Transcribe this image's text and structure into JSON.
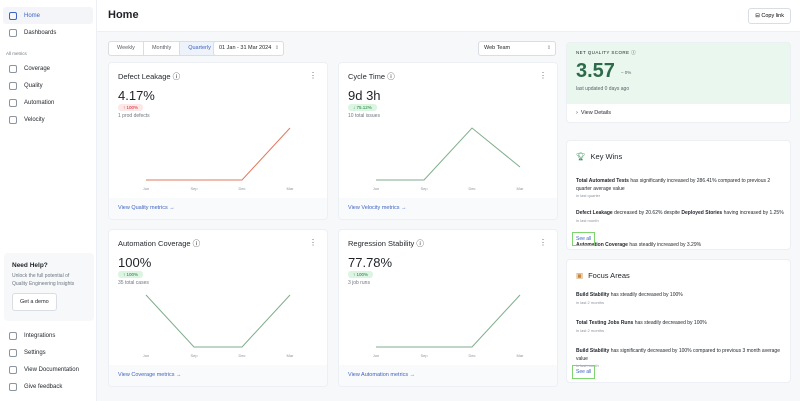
{
  "sidebar": {
    "items": [
      {
        "label": "Home",
        "icon": "home-icon"
      },
      {
        "label": "Dashboards",
        "icon": "grid-icon"
      }
    ],
    "section_label": "All metrics",
    "metrics": [
      {
        "label": "Coverage",
        "icon": "coverage-icon"
      },
      {
        "label": "Quality",
        "icon": "quality-icon"
      },
      {
        "label": "Automation",
        "icon": "automation-icon"
      },
      {
        "label": "Velocity",
        "icon": "velocity-icon"
      }
    ],
    "help": {
      "title": "Need Help?",
      "text": "Unlock the full potential of Quality Engineering Insights",
      "button": "Get a demo"
    },
    "bottom": [
      {
        "label": "Integrations"
      },
      {
        "label": "Settings"
      },
      {
        "label": "View Documentation"
      },
      {
        "label": "Give feedback"
      }
    ]
  },
  "header": {
    "title": "Home",
    "copy_link": "Copy link"
  },
  "filters": {
    "periods": [
      "Weekly",
      "Monthly",
      "Quarterly"
    ],
    "selected": "Quarterly",
    "date_range": "01 Jan - 31 Mar 2024",
    "team": "Web Team"
  },
  "colors": {
    "accent": "#3e63c2",
    "up_bad": "#e07a5f",
    "line_good": "#7fae8c",
    "score": "#2d6a4a"
  },
  "cards": [
    {
      "title": "Defect Leakage",
      "value": "4.17%",
      "badge": "↑ 100%",
      "badge_type": "red",
      "sub": "1 prod defects",
      "link": "View Quality metrics →",
      "color": "#e07a5f"
    },
    {
      "title": "Cycle Time",
      "value": "9d 3h",
      "badge": "↓ 75.12%",
      "badge_type": "green",
      "sub": "10 total issues",
      "link": "View Velocity metrics →",
      "color": "#7fae8c"
    },
    {
      "title": "Automation Coverage",
      "value": "100%",
      "badge": "↑ 100%",
      "badge_type": "green",
      "sub": "35 total cases",
      "link": "View Coverage metrics →",
      "color": "#7fae8c"
    },
    {
      "title": "Regression Stability",
      "value": "77.78%",
      "badge": "↑ 100%",
      "badge_type": "green",
      "sub": "3 job runs",
      "link": "View Automation metrics →",
      "color": "#7fae8c"
    }
  ],
  "chart_data": [
    {
      "type": "line",
      "categories": [
        "Jun",
        "Sep",
        "Dec",
        "Mar"
      ],
      "values": [
        0,
        0,
        0,
        4.17
      ]
    },
    {
      "type": "line",
      "categories": [
        "Jun",
        "Sep",
        "Dec",
        "Mar"
      ],
      "values": [
        0,
        0,
        1,
        0.25
      ]
    },
    {
      "type": "line",
      "categories": [
        "Jun",
        "Sep",
        "Dec",
        "Mar"
      ],
      "values": [
        1,
        0,
        0,
        1
      ]
    },
    {
      "type": "line",
      "categories": [
        "Jun",
        "Sep",
        "Dec",
        "Mar"
      ],
      "values": [
        0,
        0,
        0,
        77.78
      ]
    }
  ],
  "nqs": {
    "label": "NET QUALITY SCORE",
    "score": "3.57",
    "delta": "– 0%",
    "updated": "last updated 0 days ago",
    "details": "View Details"
  },
  "key_wins": {
    "title": "Key Wins",
    "see_all": "See all",
    "items": [
      {
        "bold": "Total Automated Tests",
        "text": " has significantly increased by 286.41% compared to previous 2 quarter average value",
        "when": "in last quarter"
      },
      {
        "bold": "Defect Leakage",
        "text": " decreased by 20.62% despite ",
        "bold2": "Deployed Stories",
        "text2": " having increased by 1.25%",
        "when": "in last month"
      },
      {
        "bold": "Automation Coverage",
        "text": " has steadily increased by 3.29%",
        "when": "in last 2 quarters"
      }
    ]
  },
  "focus": {
    "title": "Focus Areas",
    "see_all": "See all",
    "items": [
      {
        "bold": "Build Stability",
        "text": " has steadily decreased by 100%",
        "when": "in last 2 months"
      },
      {
        "bold": "Total Testing Jobs Runs",
        "text": " has steadily decreased by 100%",
        "when": "in last 2 months"
      },
      {
        "bold": "Build Stability",
        "text": " has significantly decreased by 100% compared to previous 3 month average value",
        "when": "in last month"
      }
    ]
  }
}
